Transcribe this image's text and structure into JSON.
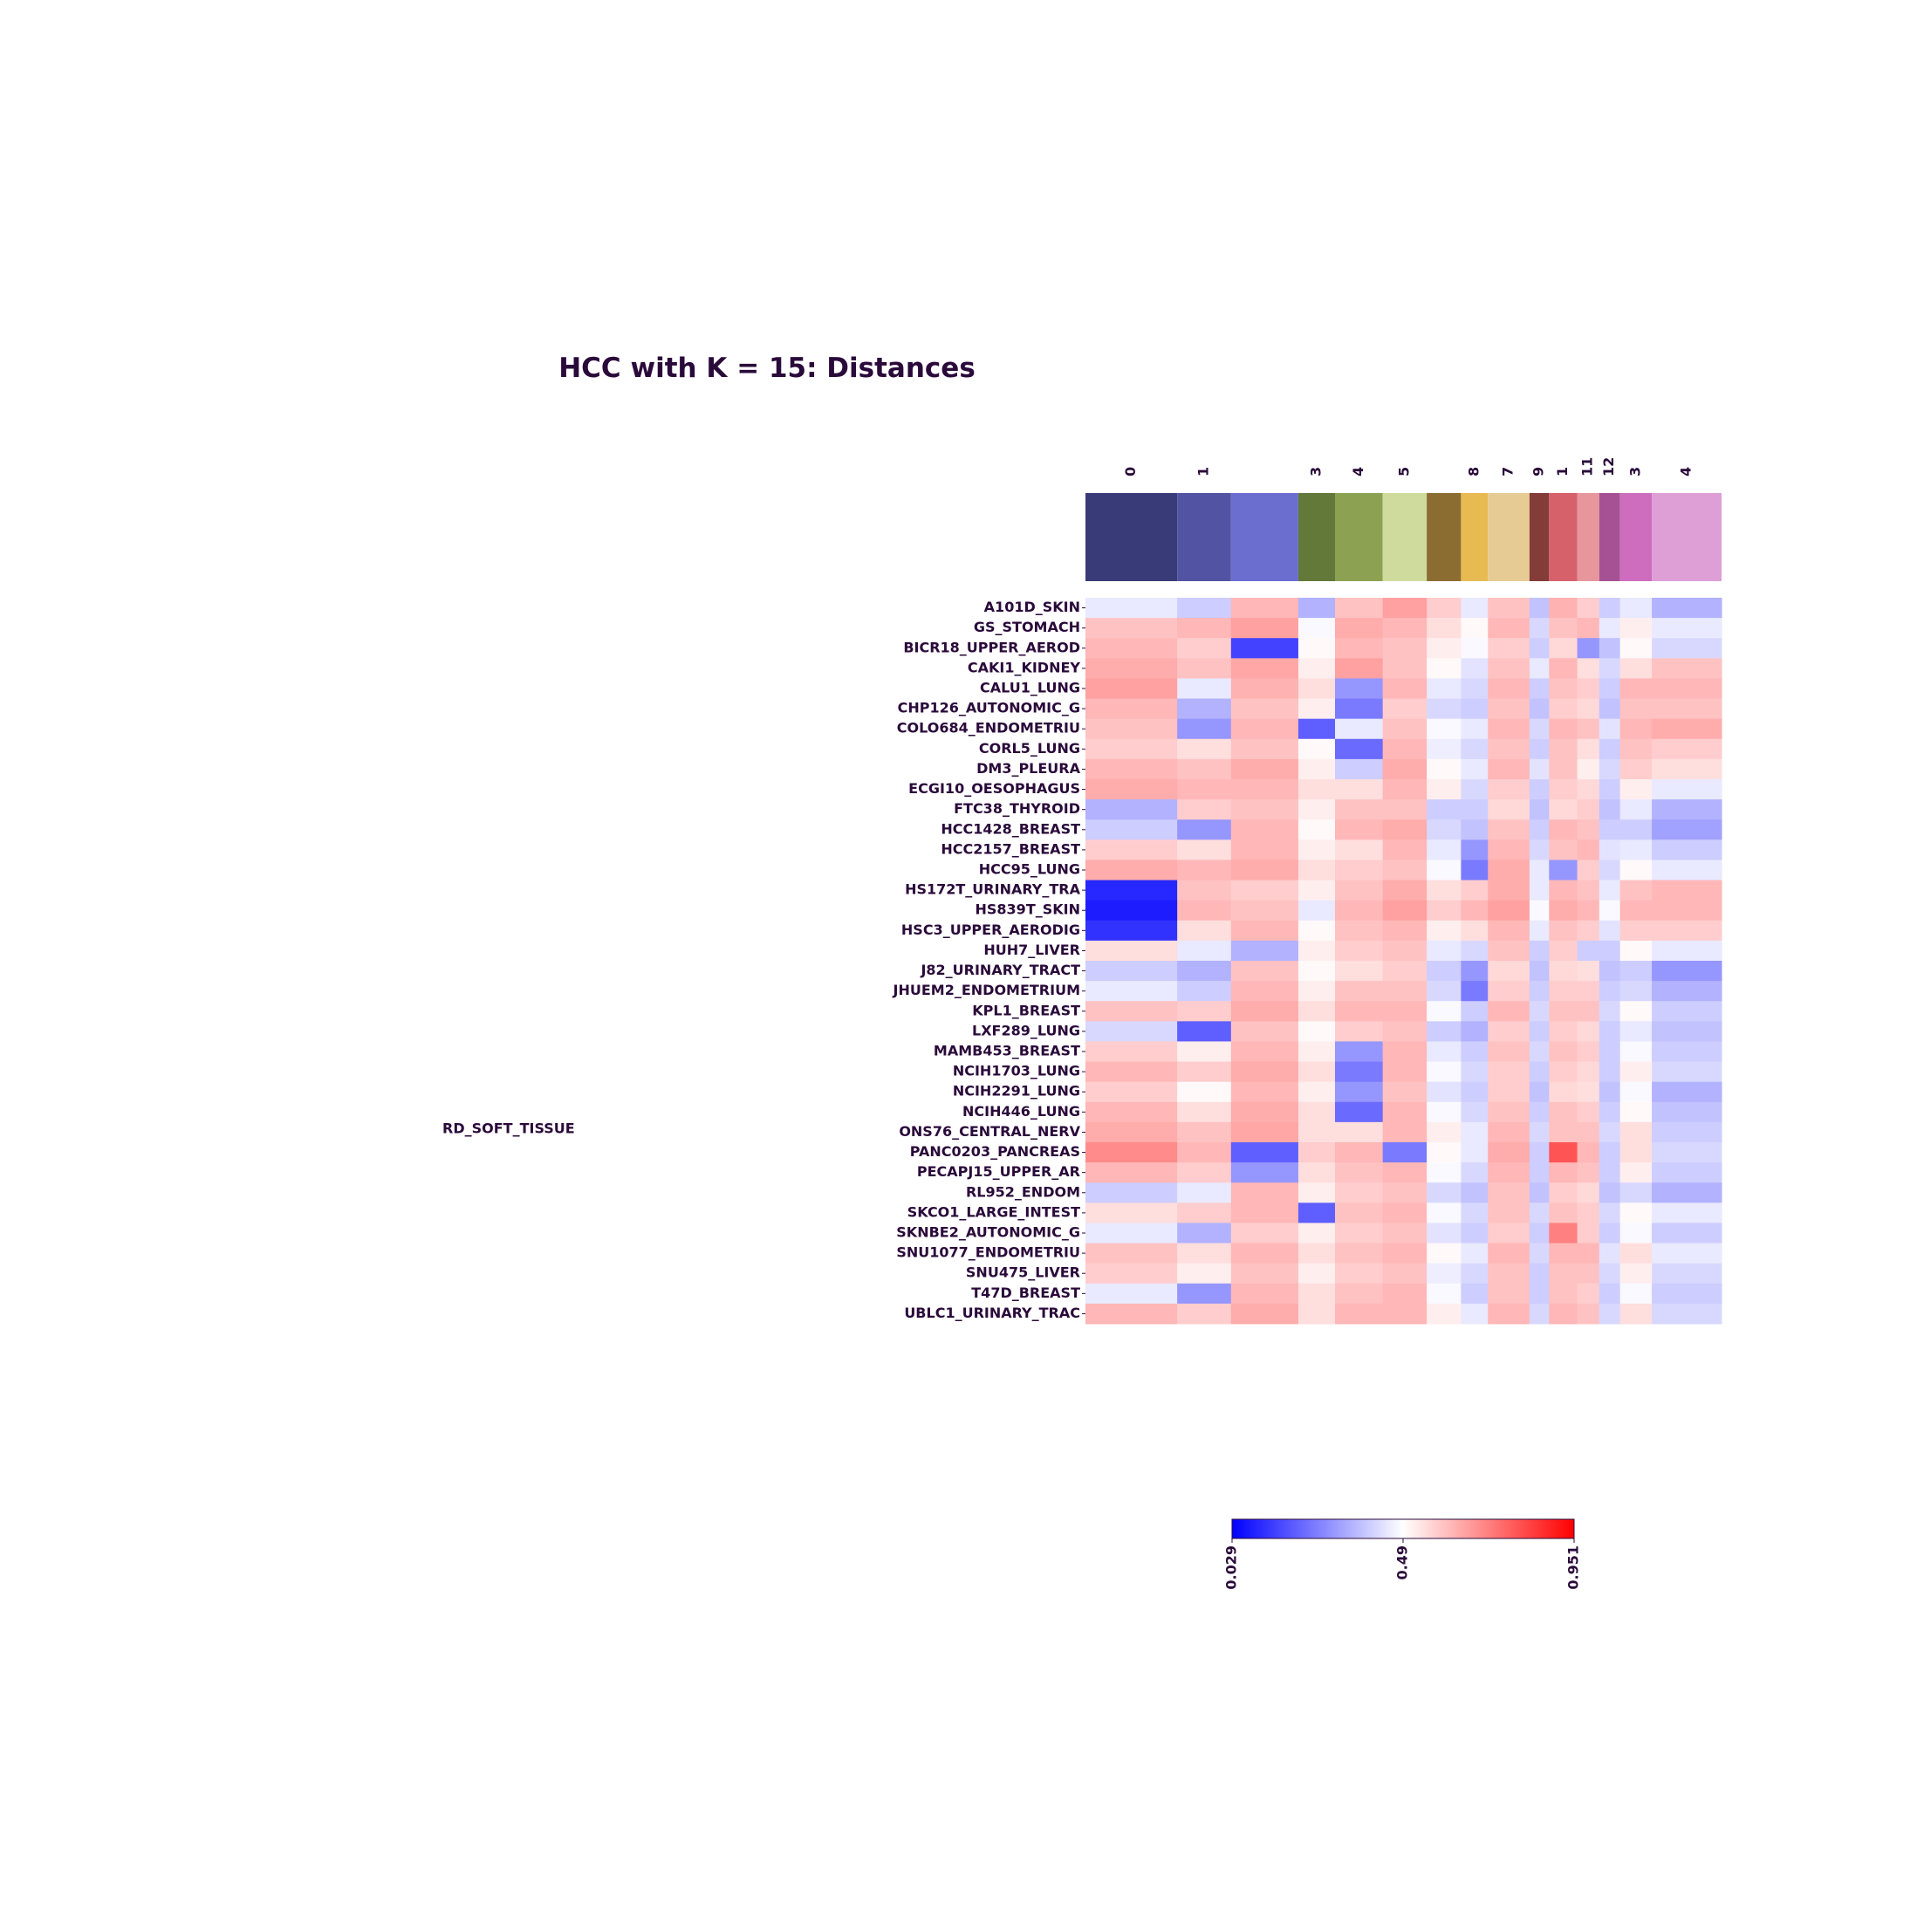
{
  "chart_data": {
    "type": "heatmap",
    "title": "HCC with K = 15: Distances",
    "annotation": "RD_SOFT_TISSUE",
    "column_clusters": {
      "labels": [
        "0",
        "1",
        null,
        "3",
        "4",
        "5",
        null,
        "8",
        "7",
        "9",
        "1",
        "11",
        "12",
        "3",
        "4"
      ],
      "colors": [
        "#393b79",
        "#5254a3",
        "#6b6ecf",
        "#637939",
        "#8ca252",
        "#cedb9c",
        "#8c6d31",
        "#e7ba52",
        "#e7cb94",
        "#843c39",
        "#d6616b",
        "#e7969c",
        "#a55194",
        "#ce6dbd",
        "#de9ed6"
      ],
      "sizes": [
        75,
        44,
        55,
        30,
        39,
        36,
        28,
        22,
        34,
        16,
        23,
        18,
        17,
        26,
        57
      ]
    },
    "rows": [
      "A101D_SKIN",
      "GS_STOMACH",
      "BICR18_UPPER_AEROD",
      "CAKI1_KIDNEY",
      "CALU1_LUNG",
      "CHP126_AUTONOMIC_G",
      "COLO684_ENDOMETRIU",
      "CORL5_LUNG",
      "DM3_PLEURA",
      "ECGI10_OESOPHAGUS",
      "FTC38_THYROID",
      "HCC1428_BREAST",
      "HCC2157_BREAST",
      "HCC95_LUNG",
      "HS172T_URINARY_TRA",
      "HS839T_SKIN",
      "HSC3_UPPER_AERODIG",
      "HUH7_LIVER",
      "J82_URINARY_TRACT",
      "JHUEM2_ENDOMETRIUM",
      "KPL1_BREAST",
      "LXF289_LUNG",
      "MAMB453_BREAST",
      "NCIH1703_LUNG",
      "NCIH2291_LUNG",
      "NCIH446_LUNG",
      "ONS76_CENTRAL_NERV",
      "PANC0203_PANCREAS",
      "PECAPJ15_UPPER_AR",
      "RL952_ENDOM",
      "SKCO1_LARGE_INTEST",
      "SKNBE2_AUTONOMIC_G",
      "SNU1077_ENDOMETRIU",
      "SNU475_LIVER",
      "T47D_BREAST",
      "UBLC1_URINARY_TRAC"
    ],
    "values": [
      [
        0.45,
        0.4,
        0.62,
        0.35,
        0.6,
        0.66,
        0.58,
        0.45,
        0.6,
        0.38,
        0.63,
        0.58,
        0.4,
        0.45,
        0.35
      ],
      [
        0.6,
        0.62,
        0.66,
        0.48,
        0.64,
        0.62,
        0.55,
        0.5,
        0.62,
        0.42,
        0.6,
        0.62,
        0.45,
        0.52,
        0.45
      ],
      [
        0.62,
        0.58,
        0.15,
        0.5,
        0.62,
        0.6,
        0.52,
        0.48,
        0.58,
        0.4,
        0.56,
        0.3,
        0.38,
        0.5,
        0.42
      ],
      [
        0.64,
        0.6,
        0.65,
        0.52,
        0.66,
        0.6,
        0.5,
        0.44,
        0.6,
        0.45,
        0.62,
        0.55,
        0.42,
        0.55,
        0.6
      ],
      [
        0.66,
        0.45,
        0.63,
        0.55,
        0.3,
        0.62,
        0.45,
        0.42,
        0.62,
        0.4,
        0.6,
        0.58,
        0.4,
        0.62,
        0.62
      ],
      [
        0.62,
        0.35,
        0.6,
        0.52,
        0.25,
        0.58,
        0.42,
        0.4,
        0.6,
        0.38,
        0.58,
        0.56,
        0.38,
        0.6,
        0.6
      ],
      [
        0.6,
        0.3,
        0.62,
        0.2,
        0.45,
        0.6,
        0.48,
        0.45,
        0.62,
        0.42,
        0.62,
        0.6,
        0.44,
        0.62,
        0.64
      ],
      [
        0.58,
        0.55,
        0.6,
        0.5,
        0.22,
        0.62,
        0.46,
        0.42,
        0.6,
        0.4,
        0.6,
        0.55,
        0.4,
        0.6,
        0.58
      ],
      [
        0.62,
        0.6,
        0.64,
        0.52,
        0.4,
        0.64,
        0.5,
        0.45,
        0.62,
        0.44,
        0.6,
        0.52,
        0.42,
        0.58,
        0.55
      ],
      [
        0.64,
        0.62,
        0.62,
        0.55,
        0.55,
        0.62,
        0.52,
        0.42,
        0.58,
        0.4,
        0.58,
        0.56,
        0.4,
        0.52,
        0.45
      ],
      [
        0.35,
        0.58,
        0.6,
        0.52,
        0.6,
        0.6,
        0.4,
        0.4,
        0.56,
        0.38,
        0.56,
        0.58,
        0.38,
        0.45,
        0.35
      ],
      [
        0.4,
        0.3,
        0.62,
        0.5,
        0.62,
        0.64,
        0.42,
        0.38,
        0.6,
        0.4,
        0.62,
        0.6,
        0.4,
        0.4,
        0.32
      ],
      [
        0.58,
        0.55,
        0.62,
        0.52,
        0.55,
        0.62,
        0.45,
        0.3,
        0.62,
        0.42,
        0.6,
        0.62,
        0.44,
        0.45,
        0.4
      ],
      [
        0.64,
        0.62,
        0.64,
        0.55,
        0.58,
        0.6,
        0.48,
        0.25,
        0.64,
        0.45,
        0.3,
        0.58,
        0.42,
        0.5,
        0.45
      ],
      [
        0.1,
        0.6,
        0.58,
        0.52,
        0.6,
        0.64,
        0.55,
        0.58,
        0.64,
        0.45,
        0.62,
        0.6,
        0.45,
        0.6,
        0.62
      ],
      [
        0.08,
        0.62,
        0.6,
        0.45,
        0.62,
        0.66,
        0.58,
        0.62,
        0.66,
        0.48,
        0.64,
        0.62,
        0.48,
        0.62,
        0.62
      ],
      [
        0.12,
        0.55,
        0.62,
        0.5,
        0.6,
        0.62,
        0.52,
        0.55,
        0.62,
        0.45,
        0.6,
        0.58,
        0.44,
        0.58,
        0.58
      ],
      [
        0.55,
        0.45,
        0.35,
        0.52,
        0.58,
        0.6,
        0.45,
        0.42,
        0.6,
        0.4,
        0.58,
        0.4,
        0.4,
        0.5,
        0.45
      ],
      [
        0.4,
        0.35,
        0.6,
        0.5,
        0.55,
        0.58,
        0.4,
        0.3,
        0.56,
        0.38,
        0.56,
        0.55,
        0.38,
        0.4,
        0.3
      ],
      [
        0.45,
        0.4,
        0.62,
        0.52,
        0.6,
        0.6,
        0.42,
        0.25,
        0.58,
        0.4,
        0.58,
        0.58,
        0.4,
        0.42,
        0.35
      ],
      [
        0.6,
        0.58,
        0.64,
        0.55,
        0.62,
        0.62,
        0.48,
        0.4,
        0.62,
        0.42,
        0.6,
        0.6,
        0.42,
        0.5,
        0.4
      ],
      [
        0.42,
        0.2,
        0.6,
        0.5,
        0.58,
        0.6,
        0.4,
        0.35,
        0.58,
        0.4,
        0.58,
        0.56,
        0.4,
        0.45,
        0.38
      ],
      [
        0.58,
        0.52,
        0.62,
        0.52,
        0.3,
        0.62,
        0.45,
        0.4,
        0.6,
        0.42,
        0.6,
        0.58,
        0.4,
        0.48,
        0.4
      ],
      [
        0.62,
        0.58,
        0.64,
        0.55,
        0.25,
        0.62,
        0.48,
        0.42,
        0.58,
        0.4,
        0.58,
        0.56,
        0.4,
        0.52,
        0.42
      ],
      [
        0.58,
        0.5,
        0.62,
        0.52,
        0.3,
        0.6,
        0.44,
        0.4,
        0.58,
        0.38,
        0.56,
        0.55,
        0.38,
        0.48,
        0.35
      ],
      [
        0.62,
        0.55,
        0.64,
        0.55,
        0.22,
        0.62,
        0.48,
        0.42,
        0.6,
        0.4,
        0.6,
        0.58,
        0.4,
        0.5,
        0.38
      ],
      [
        0.64,
        0.6,
        0.65,
        0.55,
        0.55,
        0.62,
        0.52,
        0.45,
        0.62,
        0.42,
        0.6,
        0.6,
        0.42,
        0.55,
        0.4
      ],
      [
        0.7,
        0.62,
        0.2,
        0.58,
        0.62,
        0.25,
        0.5,
        0.45,
        0.64,
        0.4,
        0.8,
        0.62,
        0.4,
        0.55,
        0.42
      ],
      [
        0.62,
        0.58,
        0.3,
        0.55,
        0.6,
        0.62,
        0.48,
        0.42,
        0.62,
        0.4,
        0.62,
        0.6,
        0.4,
        0.52,
        0.4
      ],
      [
        0.4,
        0.45,
        0.62,
        0.52,
        0.58,
        0.6,
        0.42,
        0.38,
        0.6,
        0.38,
        0.58,
        0.56,
        0.38,
        0.42,
        0.35
      ],
      [
        0.55,
        0.58,
        0.62,
        0.2,
        0.6,
        0.62,
        0.48,
        0.42,
        0.6,
        0.42,
        0.6,
        0.58,
        0.42,
        0.5,
        0.45
      ],
      [
        0.45,
        0.35,
        0.58,
        0.52,
        0.58,
        0.6,
        0.44,
        0.4,
        0.58,
        0.4,
        0.72,
        0.58,
        0.4,
        0.48,
        0.4
      ],
      [
        0.6,
        0.55,
        0.62,
        0.55,
        0.6,
        0.62,
        0.5,
        0.45,
        0.62,
        0.42,
        0.62,
        0.62,
        0.44,
        0.55,
        0.45
      ],
      [
        0.58,
        0.52,
        0.6,
        0.52,
        0.58,
        0.6,
        0.46,
        0.42,
        0.6,
        0.4,
        0.6,
        0.6,
        0.42,
        0.52,
        0.42
      ],
      [
        0.45,
        0.3,
        0.62,
        0.55,
        0.6,
        0.62,
        0.48,
        0.4,
        0.6,
        0.4,
        0.6,
        0.58,
        0.4,
        0.48,
        0.4
      ],
      [
        0.62,
        0.58,
        0.64,
        0.55,
        0.62,
        0.62,
        0.52,
        0.45,
        0.62,
        0.42,
        0.62,
        0.6,
        0.42,
        0.55,
        0.42
      ]
    ],
    "colormap": "bwr",
    "clim": [
      0.029,
      0.951
    ],
    "colorbar_ticks": [
      0.029,
      0.49,
      0.951
    ]
  }
}
